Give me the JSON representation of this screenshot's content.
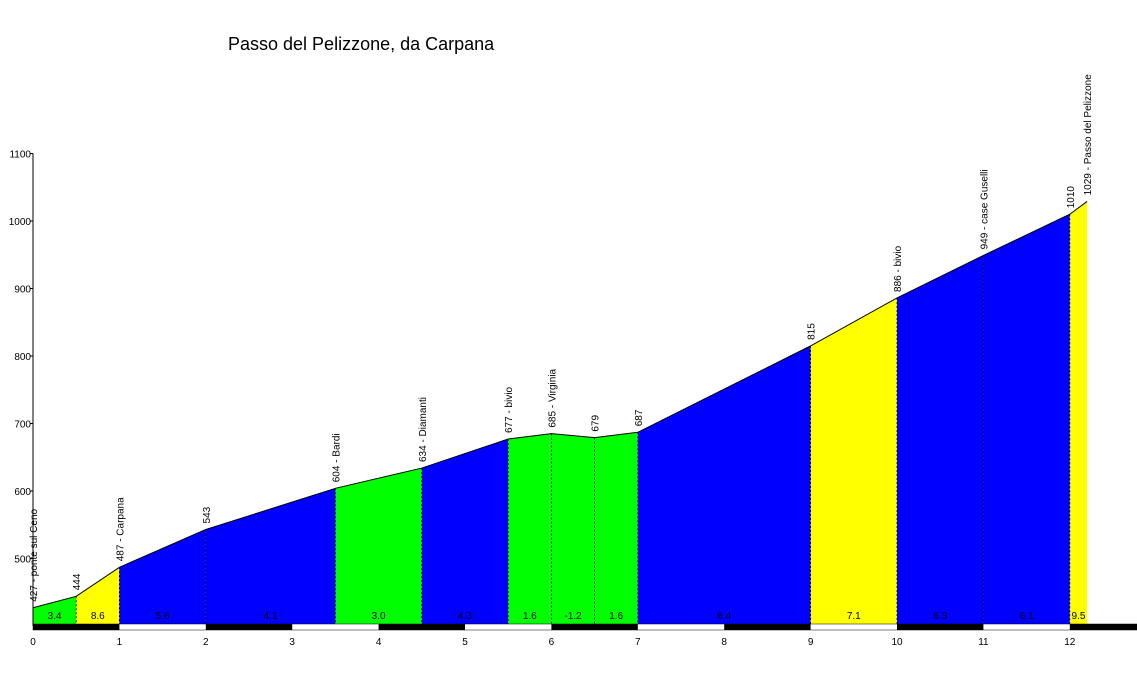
{
  "chart_data": {
    "type": "area",
    "title": "Passo del Pelizzone, da Carpana",
    "xlabel": "",
    "ylabel": "",
    "xlim": [
      0,
      12.2
    ],
    "ylim": [
      400,
      1100
    ],
    "xticks": [
      "0",
      "1",
      "2",
      "3",
      "4",
      "5",
      "6",
      "7",
      "8",
      "9",
      "10",
      "11",
      "12"
    ],
    "yticks": [
      "500",
      "600",
      "700",
      "800",
      "900",
      "1000",
      "1100"
    ],
    "grid": false,
    "colors": {
      "green": "#00ff00",
      "yellow": "#ffff00",
      "blue": "#0000ff",
      "axis": "#000000"
    },
    "points": [
      {
        "x": 0,
        "y": 427,
        "label": "427 - ponte sul Ceno"
      },
      {
        "x": 0.5,
        "y": 444,
        "label": "444"
      },
      {
        "x": 1,
        "y": 487,
        "label": "487 - Carpana"
      },
      {
        "x": 2,
        "y": 543,
        "label": "543"
      },
      {
        "x": 3.5,
        "y": 604,
        "label": "604 - Bardi"
      },
      {
        "x": 4.5,
        "y": 634,
        "label": "634 - Diamanti"
      },
      {
        "x": 5.5,
        "y": 677,
        "label": "677 - bivio"
      },
      {
        "x": 6,
        "y": 685,
        "label": "685 - Virginia"
      },
      {
        "x": 6.5,
        "y": 679,
        "label": "679"
      },
      {
        "x": 7,
        "y": 687,
        "label": "687"
      },
      {
        "x": 9,
        "y": 815,
        "label": "815"
      },
      {
        "x": 10,
        "y": 886,
        "label": "886 - bivio"
      },
      {
        "x": 11,
        "y": 949,
        "label": "949 - case Guselli"
      },
      {
        "x": 12,
        "y": 1010,
        "label": "1010"
      },
      {
        "x": 12.2,
        "y": 1029,
        "label": "1029 - Passo del Pelizzone"
      }
    ],
    "segments": [
      {
        "from": 0,
        "to": 0.5,
        "gradient": "3.4",
        "color": "green"
      },
      {
        "from": 0.5,
        "to": 1,
        "gradient": "8.6",
        "color": "yellow"
      },
      {
        "from": 1,
        "to": 2,
        "gradient": "5.6",
        "color": "blue"
      },
      {
        "from": 2,
        "to": 3.5,
        "gradient": "4.1",
        "color": "blue"
      },
      {
        "from": 3.5,
        "to": 4.5,
        "gradient": "3.0",
        "color": "green"
      },
      {
        "from": 4.5,
        "to": 5.5,
        "gradient": "4.3",
        "color": "blue"
      },
      {
        "from": 5.5,
        "to": 6,
        "gradient": "1.6",
        "color": "green"
      },
      {
        "from": 6,
        "to": 6.5,
        "gradient": "-1.2",
        "color": "green"
      },
      {
        "from": 6.5,
        "to": 7,
        "gradient": "1.6",
        "color": "green"
      },
      {
        "from": 7,
        "to": 9,
        "gradient": "6.4",
        "color": "blue"
      },
      {
        "from": 9,
        "to": 10,
        "gradient": "7.1",
        "color": "yellow"
      },
      {
        "from": 10,
        "to": 11,
        "gradient": "6.3",
        "color": "blue"
      },
      {
        "from": 11,
        "to": 12,
        "gradient": "6.1",
        "color": "blue"
      },
      {
        "from": 12,
        "to": 12.2,
        "gradient": "9.5",
        "color": "yellow"
      }
    ],
    "gradient_label_positions": [
      0.25,
      0.75,
      1.5,
      2.75,
      4,
      5,
      5.75,
      6.25,
      6.75,
      8,
      9.5,
      10.5,
      11.5,
      12.1
    ]
  }
}
